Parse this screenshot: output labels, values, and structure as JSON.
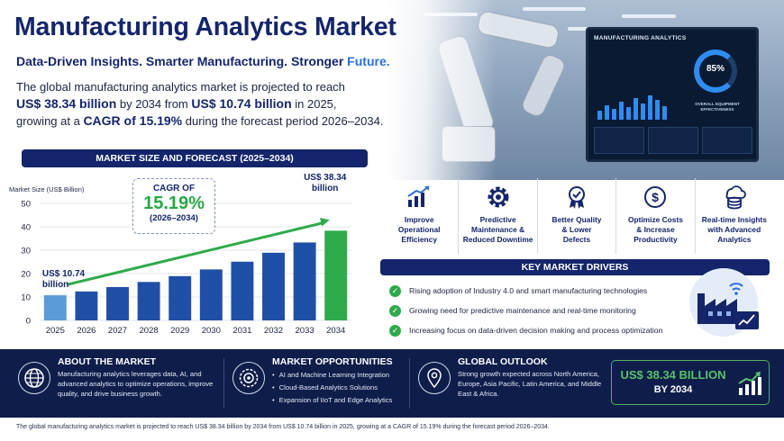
{
  "header": {
    "title": "Manufacturing Analytics Market",
    "tagline_main": "Data-Driven Insights. Smarter Manufacturing. Stronger ",
    "tagline_accent": "Future."
  },
  "intro": {
    "line1": "The global manufacturing analytics market is projected to reach",
    "value_2034": "US$ 38.34 billion",
    "by_2034_from": " by 2034 from ",
    "value_2025": "US$ 10.74 billion",
    "in_2025": " in 2025,",
    "growing_at": "growing at a ",
    "cagr": "CAGR of 15.19%",
    "period": " during the forecast period 2026–2034."
  },
  "dashboard": {
    "title": "MANUFACTURING ANALYTICS",
    "percent": "85%",
    "metric": "OVERALL EQUIPMENT EFFECTIVENESS"
  },
  "chart": {
    "banner": "MARKET SIZE AND FORECAST (2025–2034)",
    "ylabel": "Market Size (US$ Billion)",
    "cagr_label": "CAGR OF",
    "cagr_value": "15.19%",
    "cagr_period": "(2026–2034)",
    "start_label": [
      "US$ 10.74",
      "billion"
    ],
    "end_label": [
      "US$ 38.34",
      "billion"
    ]
  },
  "chart_data": {
    "type": "bar",
    "categories": [
      "2025",
      "2026",
      "2027",
      "2028",
      "2029",
      "2030",
      "2031",
      "2032",
      "2033",
      "2034"
    ],
    "values": [
      10.74,
      12.37,
      14.25,
      16.42,
      18.91,
      21.78,
      25.09,
      28.91,
      33.3,
      38.34
    ],
    "title": "MARKET SIZE AND FORECAST (2025–2034)",
    "xlabel": "",
    "ylabel": "Market Size (US$ Billion)",
    "ylim": [
      0,
      50
    ],
    "yticks": [
      0,
      10,
      20,
      30,
      40,
      50
    ],
    "grid": true,
    "colors": {
      "first": "#5b9bd8",
      "middle": "#1f4fa6",
      "last": "#2eaa4a",
      "arrow": "#2eaa4a"
    }
  },
  "benefits": [
    {
      "icon": "growth-chart-icon",
      "label": [
        "Improve",
        "Operational",
        "Efficiency"
      ]
    },
    {
      "icon": "gear-icon",
      "label": [
        "Predictive",
        "Maintenance &",
        "Reduced Downtime"
      ]
    },
    {
      "icon": "quality-badge-icon",
      "label": [
        "Better Quality",
        "& Lower",
        "Defects"
      ]
    },
    {
      "icon": "dollar-coin-icon",
      "label": [
        "Optimize Costs",
        "& Increase",
        "Productivity"
      ]
    },
    {
      "icon": "cloud-database-icon",
      "label": [
        "Real-time Insights",
        "with Advanced",
        "Analytics"
      ]
    }
  ],
  "drivers": {
    "banner": "KEY MARKET DRIVERS",
    "items": [
      "Rising adoption of Industry 4.0 and smart manufacturing technologies",
      "Growing need for predictive maintenance and real-time monitoring",
      "Increasing focus on data-driven decision making and process optimization"
    ]
  },
  "about": {
    "title": "ABOUT THE MARKET",
    "text": "Manufacturing analytics leverages data, AI, and advanced analytics to optimize operations, improve quality, and drive business growth."
  },
  "opportunities": {
    "title": "MARKET OPPORTUNITIES",
    "items": [
      "AI and Machine Learning Integration",
      "Cloud-Based Analytics Solutions",
      "Expansion of IIoT and Edge Analytics"
    ]
  },
  "outlook": {
    "title": "GLOBAL OUTLOOK",
    "text": "Strong growth expected across North America, Europe, Asia Pacific, Latin America, and Middle East & Africa.",
    "value": "US$ 38.34 BILLION",
    "by": "BY 2034"
  },
  "footnote": "The global manufacturing analytics market is projected to reach US$ 38.34 billion by 2034 from US$ 10.74 billion in 2025, growing at a CAGR of 15.19% during the forecast period 2026–2034."
}
